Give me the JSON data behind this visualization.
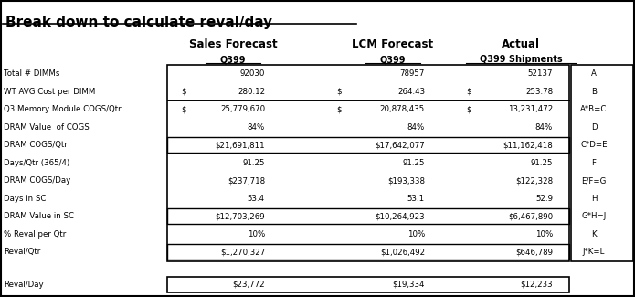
{
  "title": "Break down to calculate reval/day",
  "col_headers": [
    "Sales Forecast",
    "LCM Forecast",
    "Actual"
  ],
  "col_subheaders": [
    "Q399",
    "Q399",
    "Q399 Shipments"
  ],
  "rows": [
    {
      "label": "Total # DIMMs",
      "vals": [
        "92030",
        "78957",
        "52137"
      ],
      "letter": "A",
      "boxed": false,
      "dollar_prefix": [
        false,
        false,
        false
      ],
      "has_overline": false
    },
    {
      "label": "WT AVG Cost per DIMM",
      "vals": [
        "280.12",
        "264.43",
        "253.78"
      ],
      "letter": "B",
      "boxed": false,
      "dollar_prefix": [
        true,
        true,
        true
      ],
      "has_overline": false
    },
    {
      "label": "Q3 Memory Module COGS/Qtr",
      "vals": [
        "25,779,670",
        "20,878,435",
        "13,231,472"
      ],
      "letter": "A*B=C",
      "boxed": false,
      "dollar_prefix": [
        true,
        true,
        true
      ],
      "has_overline": true
    },
    {
      "label": "DRAM Value  of COGS",
      "vals": [
        "84%",
        "84%",
        "84%"
      ],
      "letter": "D",
      "boxed": false,
      "dollar_prefix": [
        false,
        false,
        false
      ],
      "has_overline": false
    },
    {
      "label": "DRAM COGS/Qtr",
      "vals": [
        "$21,691,811",
        "$17,642,077",
        "$11,162,418"
      ],
      "letter": "C*D=E",
      "boxed": true,
      "dollar_prefix": [
        false,
        false,
        false
      ],
      "has_overline": false
    },
    {
      "label": "Days/Qtr (365/4)",
      "vals": [
        "91.25",
        "91.25",
        "91.25"
      ],
      "letter": "F",
      "boxed": false,
      "dollar_prefix": [
        false,
        false,
        false
      ],
      "has_overline": false
    },
    {
      "label": "DRAM COGS/Day",
      "vals": [
        "$237,718",
        "$193,338",
        "$122,328"
      ],
      "letter": "E/F=G",
      "boxed": false,
      "dollar_prefix": [
        false,
        false,
        false
      ],
      "has_overline": false
    },
    {
      "label": "Days in SC",
      "vals": [
        "53.4",
        "53.1",
        "52.9"
      ],
      "letter": "H",
      "boxed": false,
      "dollar_prefix": [
        false,
        false,
        false
      ],
      "has_overline": false
    },
    {
      "label": "DRAM Value in SC",
      "vals": [
        "$12,703,269",
        "$10,264,923",
        "$6,467,890"
      ],
      "letter": "G*H=J",
      "boxed": true,
      "dollar_prefix": [
        false,
        false,
        false
      ],
      "has_overline": false
    },
    {
      "label": "% Reval per Qtr",
      "vals": [
        "10%",
        "10%",
        "10%"
      ],
      "letter": "K",
      "boxed": false,
      "dollar_prefix": [
        false,
        false,
        false
      ],
      "has_overline": false
    },
    {
      "label": "Reval/Qtr",
      "vals": [
        "$1,270,327",
        "$1,026,492",
        "$646,789"
      ],
      "letter": "J*K=L",
      "boxed": true,
      "dollar_prefix": [
        false,
        false,
        false
      ],
      "has_overline": false
    }
  ],
  "final_row": {
    "label": "Reval/Day",
    "vals": [
      "$23,772",
      "$19,334",
      "$12,233"
    ]
  },
  "fig_width": 6.95,
  "fig_height": 3.25,
  "dpi": 100
}
